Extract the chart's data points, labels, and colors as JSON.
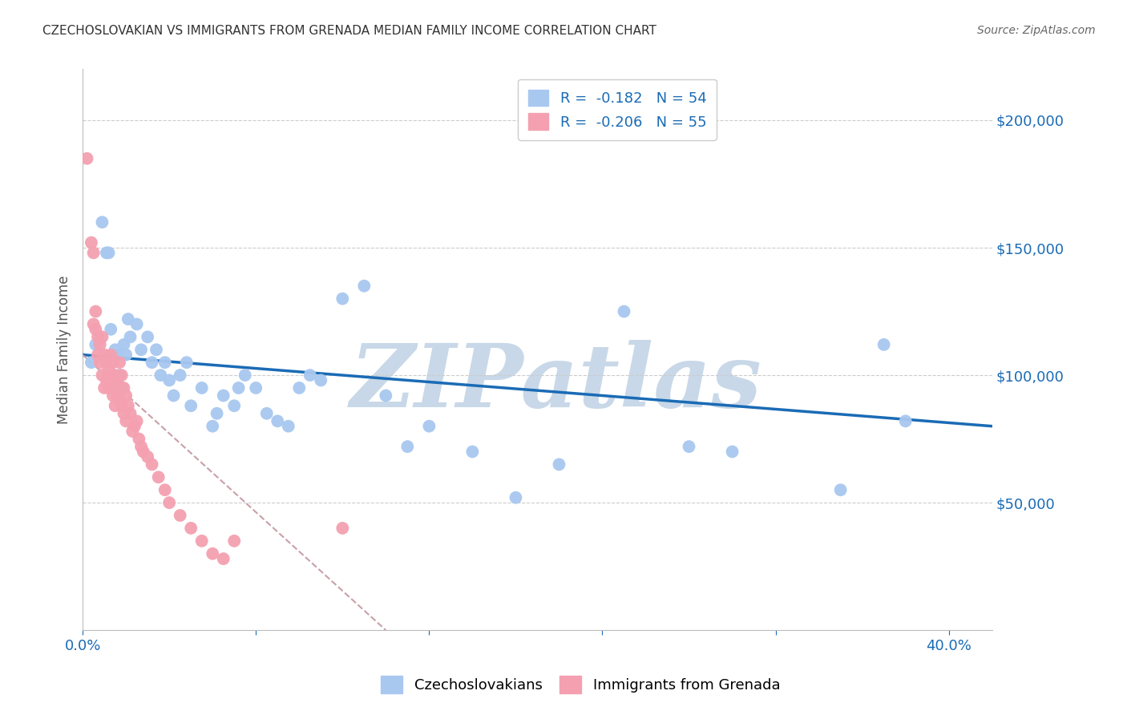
{
  "title": "CZECHOSLOVAKIAN VS IMMIGRANTS FROM GRENADA MEDIAN FAMILY INCOME CORRELATION CHART",
  "source": "Source: ZipAtlas.com",
  "ylabel": "Median Family Income",
  "ytick_labels": [
    "$50,000",
    "$100,000",
    "$150,000",
    "$200,000"
  ],
  "ytick_values": [
    50000,
    100000,
    150000,
    200000
  ],
  "ylim": [
    0,
    220000
  ],
  "xlim": [
    0.0,
    0.42
  ],
  "watermark": "ZIPatlas",
  "legend_r1": "R =  -0.182   N = 54",
  "legend_r2": "R =  -0.206   N = 55",
  "blue_scatter_x": [
    0.004,
    0.006,
    0.009,
    0.011,
    0.012,
    0.013,
    0.015,
    0.016,
    0.017,
    0.018,
    0.019,
    0.02,
    0.021,
    0.022,
    0.025,
    0.027,
    0.03,
    0.032,
    0.034,
    0.036,
    0.038,
    0.04,
    0.042,
    0.045,
    0.048,
    0.05,
    0.055,
    0.06,
    0.062,
    0.065,
    0.07,
    0.072,
    0.075,
    0.08,
    0.085,
    0.09,
    0.095,
    0.1,
    0.105,
    0.11,
    0.12,
    0.13,
    0.14,
    0.15,
    0.16,
    0.18,
    0.2,
    0.22,
    0.25,
    0.28,
    0.3,
    0.35,
    0.37,
    0.38
  ],
  "blue_scatter_y": [
    105000,
    112000,
    160000,
    148000,
    148000,
    118000,
    110000,
    108000,
    100000,
    95000,
    112000,
    108000,
    122000,
    115000,
    120000,
    110000,
    115000,
    105000,
    110000,
    100000,
    105000,
    98000,
    92000,
    100000,
    105000,
    88000,
    95000,
    80000,
    85000,
    92000,
    88000,
    95000,
    100000,
    95000,
    85000,
    82000,
    80000,
    95000,
    100000,
    98000,
    130000,
    135000,
    92000,
    72000,
    80000,
    70000,
    52000,
    65000,
    125000,
    72000,
    70000,
    55000,
    112000,
    82000
  ],
  "pink_scatter_x": [
    0.002,
    0.004,
    0.005,
    0.005,
    0.006,
    0.006,
    0.007,
    0.007,
    0.008,
    0.008,
    0.009,
    0.009,
    0.01,
    0.01,
    0.011,
    0.011,
    0.012,
    0.012,
    0.013,
    0.013,
    0.014,
    0.014,
    0.015,
    0.015,
    0.015,
    0.016,
    0.016,
    0.017,
    0.017,
    0.018,
    0.018,
    0.019,
    0.019,
    0.02,
    0.02,
    0.021,
    0.022,
    0.023,
    0.024,
    0.025,
    0.026,
    0.027,
    0.028,
    0.03,
    0.032,
    0.035,
    0.038,
    0.04,
    0.045,
    0.05,
    0.055,
    0.06,
    0.065,
    0.07,
    0.12
  ],
  "pink_scatter_y": [
    185000,
    152000,
    148000,
    120000,
    125000,
    118000,
    115000,
    108000,
    112000,
    105000,
    100000,
    115000,
    108000,
    95000,
    105000,
    98000,
    102000,
    95000,
    108000,
    100000,
    105000,
    92000,
    95000,
    88000,
    100000,
    98000,
    92000,
    105000,
    90000,
    100000,
    88000,
    95000,
    85000,
    92000,
    82000,
    88000,
    85000,
    78000,
    80000,
    82000,
    75000,
    72000,
    70000,
    68000,
    65000,
    60000,
    55000,
    50000,
    45000,
    40000,
    35000,
    30000,
    28000,
    35000,
    40000
  ],
  "blue_line_x": [
    0.0,
    0.42
  ],
  "blue_line_y": [
    108000,
    80000
  ],
  "pink_line_x": [
    0.0,
    0.14
  ],
  "pink_line_y": [
    108000,
    0
  ],
  "scatter_color_blue": "#a8c8f0",
  "scatter_color_pink": "#f4a0b0",
  "line_color_blue": "#1a6bb5",
  "line_color_pink": "#c8a0a8",
  "watermark_color": "#c8d8e8",
  "grid_color": "#cccccc",
  "title_color": "#333333",
  "axis_label_color": "#555555",
  "tick_color": "#1a6bb5",
  "background_color": "#ffffff"
}
